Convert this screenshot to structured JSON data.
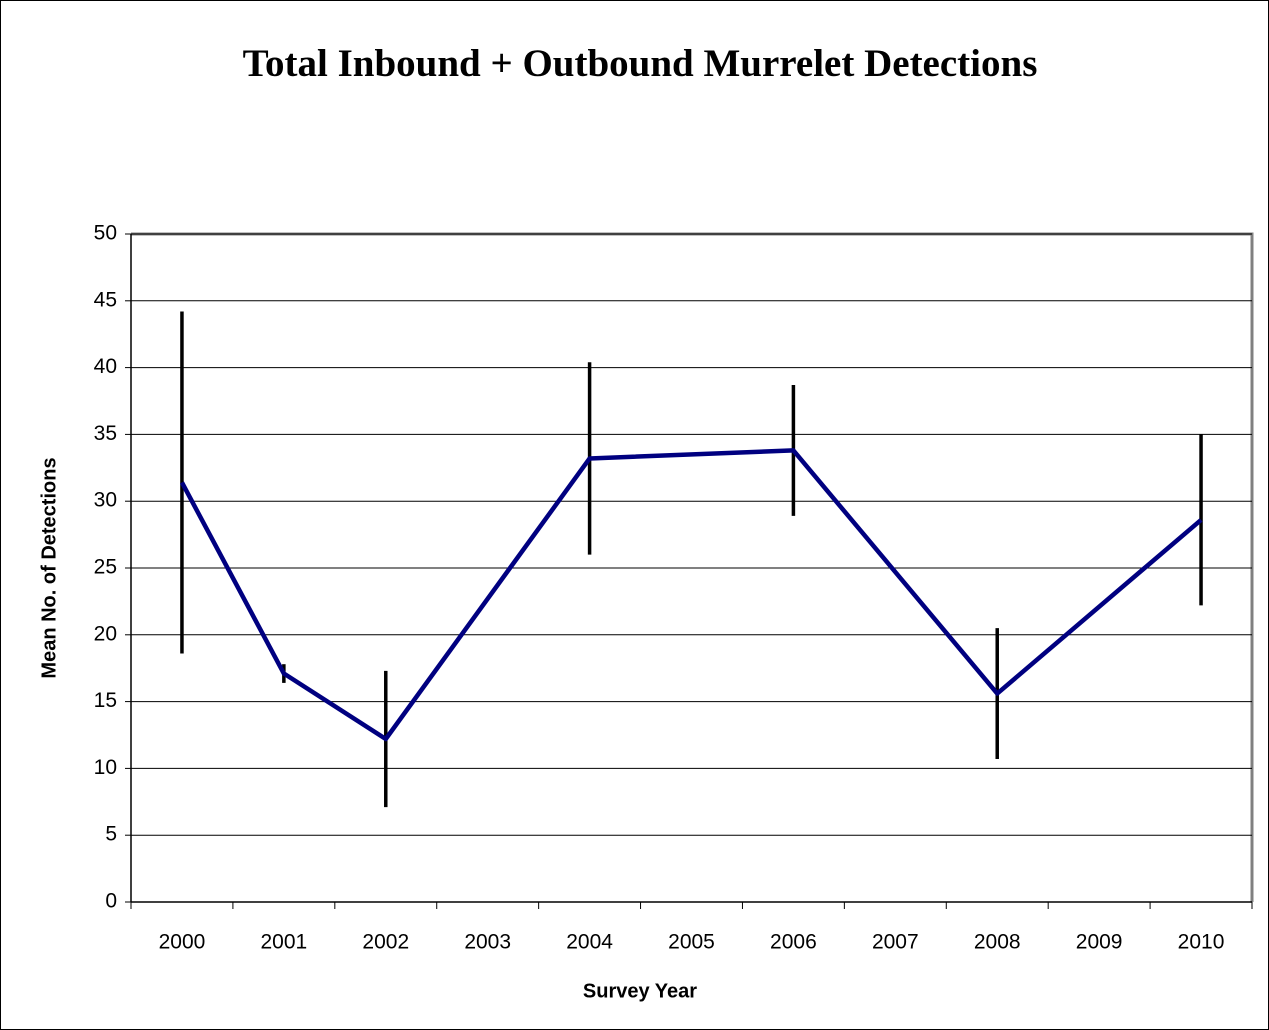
{
  "chart_data": {
    "type": "line",
    "title": "Total Inbound + Outbound Murrelet Detections",
    "x_label": "Survey Year",
    "y_label": "Mean No. of Detections",
    "x": [
      2000,
      2001,
      2002,
      2004,
      2006,
      2008,
      2010
    ],
    "series": [
      {
        "color": "#000080",
        "error_color": "#000000",
        "values": [
          31.4,
          17.1,
          12.2,
          33.2,
          33.8,
          15.6,
          28.6
        ],
        "errors": [
          12.8,
          0.7,
          5.1,
          7.2,
          4.9,
          4.9,
          6.4
        ]
      }
    ],
    "xlim": [
      1999.5,
      2010.5
    ],
    "xticks": [
      2000,
      2001,
      2002,
      2003,
      2004,
      2005,
      2006,
      2007,
      2008,
      2009,
      2010
    ],
    "ylim": [
      0,
      50
    ],
    "yticks": [
      0,
      5,
      10,
      15,
      20,
      25,
      30,
      35,
      40,
      45,
      50
    ],
    "grid": true
  }
}
